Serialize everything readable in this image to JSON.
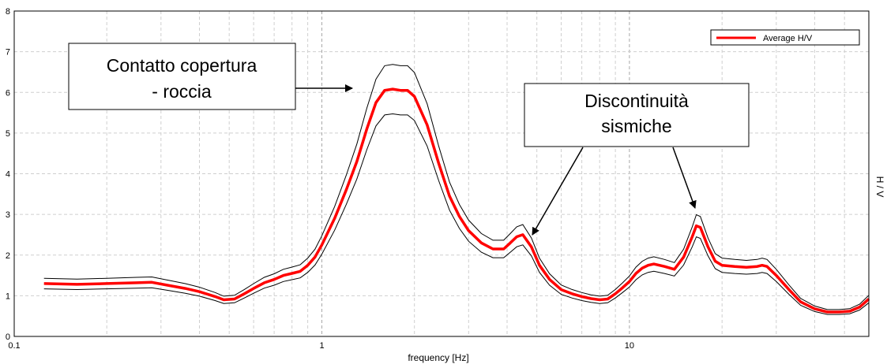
{
  "chart_data": {
    "type": "line",
    "title": "",
    "xlabel": "frequency [Hz]",
    "ylabel": "H / V",
    "x_scale": "log",
    "xlim": [
      0.1,
      60
    ],
    "ylim": [
      0,
      8
    ],
    "grid": true,
    "legend_placement": "top-right",
    "x_tick_labels": [
      {
        "value": 0.1,
        "label": "0.1"
      },
      {
        "value": 1,
        "label": "1"
      },
      {
        "value": 10,
        "label": "10"
      }
    ],
    "y_ticks": [
      0,
      1,
      2,
      3,
      4,
      5,
      6,
      7,
      8
    ],
    "series": [
      {
        "name": "Average H/V",
        "color": "#ff0000",
        "x": [
          0.125,
          0.16,
          0.2,
          0.25,
          0.28,
          0.32,
          0.36,
          0.4,
          0.45,
          0.48,
          0.52,
          0.56,
          0.6,
          0.65,
          0.7,
          0.75,
          0.8,
          0.85,
          0.9,
          0.95,
          1.0,
          1.1,
          1.2,
          1.3,
          1.4,
          1.5,
          1.6,
          1.7,
          1.8,
          1.9,
          2.0,
          2.2,
          2.4,
          2.6,
          2.8,
          3.0,
          3.3,
          3.6,
          3.9,
          4.1,
          4.3,
          4.5,
          4.8,
          5.1,
          5.5,
          6.0,
          6.5,
          7.0,
          7.5,
          8.0,
          8.5,
          9.0,
          9.5,
          10.0,
          10.5,
          11.0,
          11.5,
          12.0,
          13.0,
          14.0,
          15.0,
          16.0,
          16.5,
          17.0,
          18.0,
          19.0,
          20.0,
          22.0,
          24.0,
          26.0,
          27.0,
          28.0,
          30.0,
          33.0,
          36.0,
          40.0,
          44.0,
          48.0,
          52.0,
          56.0,
          60.0
        ],
        "y": [
          1.3,
          1.28,
          1.3,
          1.32,
          1.33,
          1.25,
          1.18,
          1.1,
          0.98,
          0.9,
          0.92,
          1.05,
          1.18,
          1.32,
          1.4,
          1.5,
          1.55,
          1.6,
          1.75,
          1.95,
          2.25,
          2.9,
          3.6,
          4.3,
          5.1,
          5.75,
          6.05,
          6.08,
          6.05,
          6.05,
          5.9,
          5.2,
          4.25,
          3.45,
          2.95,
          2.6,
          2.3,
          2.15,
          2.15,
          2.3,
          2.45,
          2.5,
          2.2,
          1.75,
          1.4,
          1.15,
          1.05,
          0.98,
          0.93,
          0.9,
          0.92,
          1.05,
          1.2,
          1.35,
          1.55,
          1.68,
          1.75,
          1.78,
          1.72,
          1.65,
          1.95,
          2.45,
          2.72,
          2.68,
          2.2,
          1.85,
          1.75,
          1.72,
          1.7,
          1.72,
          1.75,
          1.72,
          1.5,
          1.15,
          0.85,
          0.68,
          0.6,
          0.6,
          0.62,
          0.72,
          0.92
        ]
      }
    ],
    "annotations": [
      {
        "text_lines": [
          "Contatto copertura",
          "- roccia"
        ]
      },
      {
        "text_lines": [
          "Discontinuità",
          "sismiche"
        ]
      }
    ]
  }
}
